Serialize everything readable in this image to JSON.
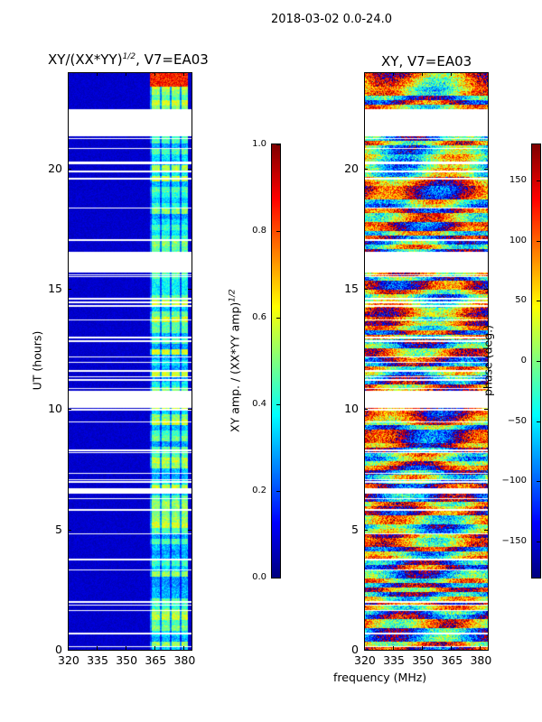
{
  "suptitle": "2018-03-02 0.0-24.0",
  "chart_data": [
    {
      "type": "heatmap",
      "title": "XY/(XX*YY)^{1/2}, V7=EA03",
      "title_main": "XY/(XX*YY)",
      "title_sup": "1/2",
      "title_tail": ", V7=EA03",
      "xlabel": "frequency (MHz)",
      "ylabel": "UT (hours)",
      "xlim": [
        320,
        384
      ],
      "ylim": [
        0,
        24
      ],
      "xticks": [
        "320",
        "335",
        "350",
        "365",
        "380"
      ],
      "xtick_values": [
        320,
        335,
        350,
        365,
        380
      ],
      "yticks": [
        "0",
        "5",
        "10",
        "15",
        "20"
      ],
      "ytick_values": [
        0,
        5,
        10,
        15,
        20
      ],
      "colormap": "jet",
      "clim": [
        0,
        1
      ],
      "colorbar_label": "XY amp. / (XX*YY amp)^{1/2}",
      "colorbar_label_main": "XY amp. / (XX*YY amp)",
      "colorbar_label_sup": "1/2",
      "colorbar_ticks": [
        "0.0",
        "0.2",
        "0.4",
        "0.6",
        "0.8",
        "1.0"
      ],
      "colorbar_tick_values": [
        0,
        0.2,
        0.4,
        0.6,
        0.8,
        1.0
      ],
      "background_level": 0.05,
      "active_band_mhz": [
        362,
        382
      ],
      "active_band_level": 0.45,
      "flagged_hours": [
        [
          21.4,
          22.5
        ],
        [
          15.7,
          16.6
        ],
        [
          10.1,
          10.8
        ]
      ]
    },
    {
      "type": "heatmap",
      "title": "XY, V7=EA03",
      "xlabel": "frequency (MHz)",
      "xlim": [
        320,
        384
      ],
      "ylim": [
        0,
        24
      ],
      "xticks": [
        "320",
        "335",
        "350",
        "365",
        "380"
      ],
      "xtick_values": [
        320,
        335,
        350,
        365,
        380
      ],
      "yticks": [
        "0",
        "5",
        "10",
        "15",
        "20"
      ],
      "ytick_values": [
        0,
        5,
        10,
        15,
        20
      ],
      "colormap": "jet",
      "clim": [
        -180,
        180
      ],
      "colorbar_label": "phase (deg.)",
      "colorbar_ticks": [
        "−150",
        "−100",
        "−50",
        "0",
        "50",
        "100",
        "150"
      ],
      "colorbar_tick_values": [
        -150,
        -100,
        -50,
        0,
        50,
        100,
        150
      ],
      "flagged_hours": [
        [
          21.4,
          22.5
        ],
        [
          15.7,
          16.6
        ],
        [
          10.1,
          10.8
        ]
      ]
    }
  ]
}
